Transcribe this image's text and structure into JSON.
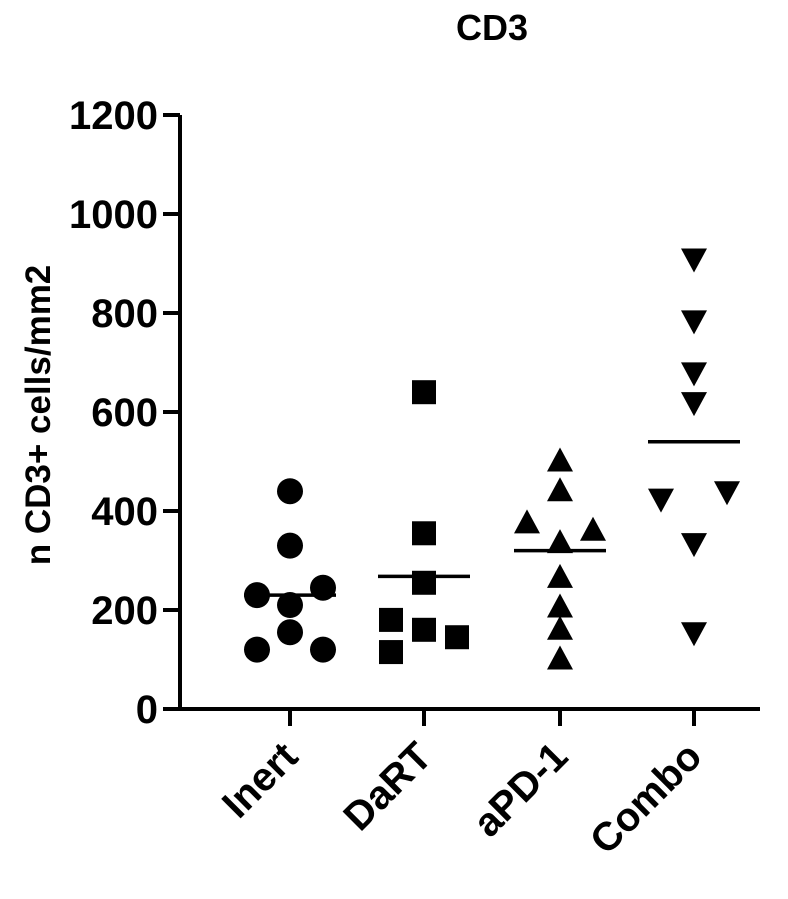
{
  "chart_data": {
    "type": "scatter",
    "title": "CD3",
    "ylabel": "n CD3+ cells/mm2",
    "xlabel": "",
    "ylim": [
      0,
      1200
    ],
    "yticks": [
      0,
      200,
      400,
      600,
      800,
      1000,
      1200
    ],
    "grid": false,
    "categories": [
      "Inert",
      "DaRT",
      "aPD-1",
      "Combo"
    ],
    "series": [
      {
        "category": "Inert",
        "marker": "circle",
        "points": [
          {
            "offset": 0,
            "y": 440
          },
          {
            "offset": 0,
            "y": 330
          },
          {
            "offset": -0.5,
            "y": 230
          },
          {
            "offset": 0.5,
            "y": 245
          },
          {
            "offset": 0,
            "y": 210
          },
          {
            "offset": 0,
            "y": 155
          },
          {
            "offset": -0.5,
            "y": 120
          },
          {
            "offset": 0.5,
            "y": 120
          }
        ],
        "mean": 230
      },
      {
        "category": "DaRT",
        "marker": "square",
        "points": [
          {
            "offset": 0,
            "y": 640
          },
          {
            "offset": 0,
            "y": 355
          },
          {
            "offset": 0,
            "y": 255
          },
          {
            "offset": -0.5,
            "y": 180
          },
          {
            "offset": 0,
            "y": 160
          },
          {
            "offset": 0.5,
            "y": 145
          },
          {
            "offset": -0.5,
            "y": 115
          }
        ],
        "mean": 268
      },
      {
        "category": "aPD-1",
        "marker": "triangle-up",
        "points": [
          {
            "offset": 0,
            "y": 500
          },
          {
            "offset": 0,
            "y": 440
          },
          {
            "offset": -0.5,
            "y": 375
          },
          {
            "offset": 0.5,
            "y": 360
          },
          {
            "offset": 0,
            "y": 335
          },
          {
            "offset": 0,
            "y": 265
          },
          {
            "offset": 0,
            "y": 205
          },
          {
            "offset": 0,
            "y": 160
          },
          {
            "offset": 0,
            "y": 100
          }
        ],
        "mean": 320
      },
      {
        "category": "Combo",
        "marker": "triangle-down",
        "points": [
          {
            "offset": 0,
            "y": 910
          },
          {
            "offset": 0,
            "y": 785
          },
          {
            "offset": 0,
            "y": 680
          },
          {
            "offset": 0,
            "y": 620
          },
          {
            "offset": -0.5,
            "y": 425
          },
          {
            "offset": 0.5,
            "y": 440
          },
          {
            "offset": 0,
            "y": 335
          },
          {
            "offset": 0,
            "y": 155
          }
        ],
        "mean": 540
      }
    ]
  }
}
